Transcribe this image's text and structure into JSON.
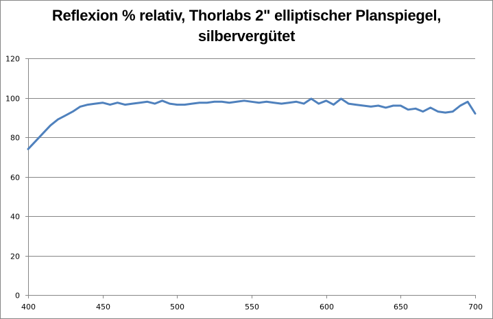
{
  "chart_data": {
    "type": "line",
    "title": "Reflexion % relativ, Thorlabs 2\" elliptischer Planspiegel, silbervergütet",
    "title_lines": [
      "Reflexion % relativ, Thorlabs 2\" elliptischer Planspiegel,",
      "silbervergütet"
    ],
    "xlabel": "",
    "ylabel": "",
    "xlim": [
      400,
      700
    ],
    "ylim": [
      0,
      120
    ],
    "xticks": [
      400,
      450,
      500,
      550,
      600,
      650,
      700
    ],
    "yticks": [
      0,
      20,
      40,
      60,
      80,
      100,
      120
    ],
    "grid": {
      "horizontal": true,
      "vertical": false
    },
    "legend": null,
    "line_color": "#4F81BD",
    "series": [
      {
        "name": "Reflexion",
        "x": [
          400,
          405,
          410,
          415,
          420,
          425,
          430,
          435,
          440,
          445,
          450,
          455,
          460,
          465,
          470,
          475,
          480,
          485,
          490,
          495,
          500,
          505,
          510,
          515,
          520,
          525,
          530,
          535,
          540,
          545,
          550,
          555,
          560,
          565,
          570,
          575,
          580,
          585,
          590,
          595,
          600,
          605,
          610,
          615,
          620,
          625,
          630,
          635,
          640,
          645,
          650,
          655,
          660,
          665,
          670,
          675,
          680,
          685,
          690,
          695,
          700
        ],
        "values": [
          74,
          78,
          82,
          86,
          89,
          91,
          93,
          95.5,
          96.5,
          97,
          97.5,
          96.5,
          97.5,
          96.5,
          97,
          97.5,
          98,
          97,
          98.5,
          97,
          96.5,
          96.5,
          97,
          97.5,
          97.5,
          98,
          98,
          97.5,
          98,
          98.5,
          98,
          97.5,
          98,
          97.5,
          97,
          97.5,
          98,
          97,
          99.5,
          97,
          98.5,
          96.5,
          99.5,
          97,
          96.5,
          96,
          95.5,
          96,
          95,
          96,
          96,
          94,
          94.5,
          93,
          95,
          93,
          92.5,
          93,
          96,
          98,
          92
        ]
      }
    ]
  }
}
